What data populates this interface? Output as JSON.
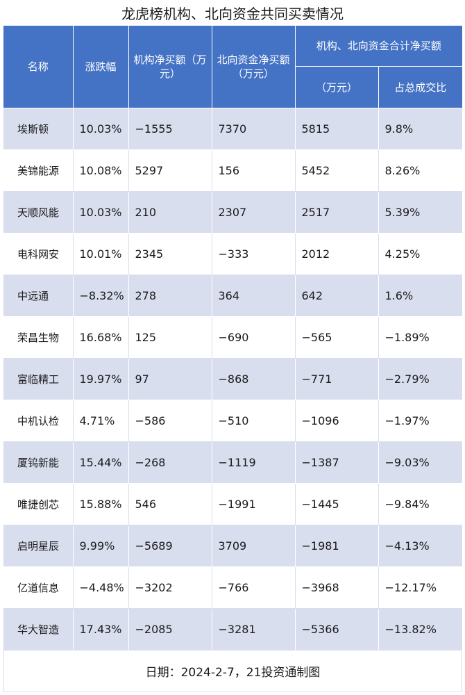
{
  "title": "龙虎榜机构、北向资金共同买卖情况",
  "headers": {
    "name": "名称",
    "change": "涨跌幅",
    "inst_net": "机构净买额（万元）",
    "north_net": "北向资金净买额（万元）",
    "combined_group": "机构、北向资金合计净买额",
    "combined_amount": "（万元）",
    "share_of_turnover": "占总成交比"
  },
  "rows": [
    {
      "name": "埃斯顿",
      "change": "10.03%",
      "inst_net": "−1555",
      "north_net": "7370",
      "combined": "5815",
      "share": "9.8%"
    },
    {
      "name": "美锦能源",
      "change": "10.08%",
      "inst_net": "5297",
      "north_net": "156",
      "combined": "5452",
      "share": "8.26%"
    },
    {
      "name": "天顺风能",
      "change": "10.03%",
      "inst_net": "210",
      "north_net": "2307",
      "combined": "2517",
      "share": "5.39%"
    },
    {
      "name": "电科网安",
      "change": "10.01%",
      "inst_net": "2345",
      "north_net": "−333",
      "combined": "2012",
      "share": "4.25%"
    },
    {
      "name": "中远通",
      "change": "−8.32%",
      "inst_net": "278",
      "north_net": "364",
      "combined": "642",
      "share": "1.6%"
    },
    {
      "name": "荣昌生物",
      "change": "16.68%",
      "inst_net": "125",
      "north_net": "−690",
      "combined": "−565",
      "share": "−1.89%"
    },
    {
      "name": "富临精工",
      "change": "19.97%",
      "inst_net": "97",
      "north_net": "−868",
      "combined": "−771",
      "share": "−2.79%"
    },
    {
      "name": "中机认检",
      "change": "4.71%",
      "inst_net": "−586",
      "north_net": "−510",
      "combined": "−1096",
      "share": "−1.97%"
    },
    {
      "name": "厦钨新能",
      "change": "15.44%",
      "inst_net": "−268",
      "north_net": "−1119",
      "combined": "−1387",
      "share": "−9.03%"
    },
    {
      "name": "唯捷创芯",
      "change": "15.88%",
      "inst_net": "546",
      "north_net": "−1991",
      "combined": "−1445",
      "share": "−9.84%"
    },
    {
      "name": "启明星辰",
      "change": "9.99%",
      "inst_net": "−5689",
      "north_net": "3709",
      "combined": "−1981",
      "share": "−4.13%"
    },
    {
      "name": "亿道信息",
      "change": "−4.48%",
      "inst_net": "−3202",
      "north_net": "−766",
      "combined": "−3968",
      "share": "−12.17%"
    },
    {
      "name": "华大智造",
      "change": "17.43%",
      "inst_net": "−2085",
      "north_net": "−3281",
      "combined": "−5366",
      "share": "−13.82%"
    }
  ],
  "footer": "日期：2024-2-7，21投资通制图"
}
